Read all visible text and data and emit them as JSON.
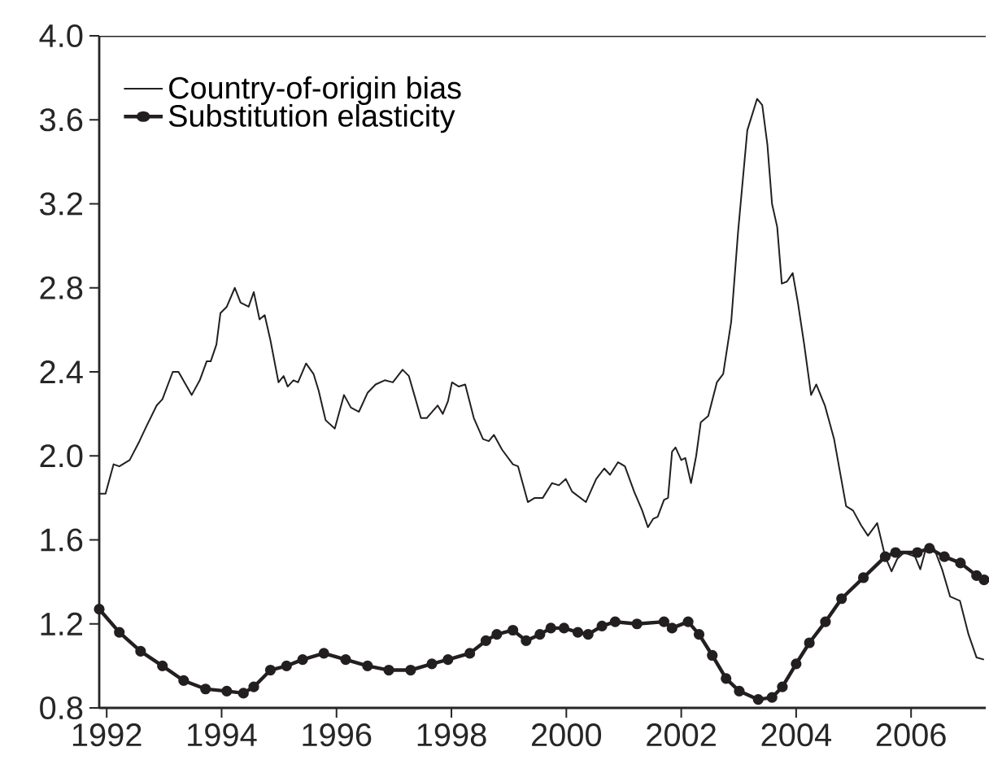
{
  "chart_data": {
    "type": "line",
    "xlim": [
      1991.87,
      2007.3
    ],
    "ylim": [
      0.8,
      4.0
    ],
    "xticks": [
      1992,
      1994,
      1996,
      1998,
      2000,
      2002,
      2004,
      2006
    ],
    "yticks": [
      0.8,
      1.2,
      1.6,
      {
        "value": 2.0,
        "label": "2.0"
      },
      2.4,
      2.8,
      3.2,
      3.6,
      {
        "value": 4.0,
        "label": "4.0"
      }
    ],
    "legend": "top left",
    "series": [
      {
        "name": "Country-of-origin bias",
        "color": "#231f20",
        "marker": "none",
        "x": [
          1991.87,
          1991.98,
          1992.12,
          1992.22,
          1992.4,
          1992.57,
          1992.69,
          1992.87,
          1992.97,
          1993.15,
          1993.25,
          1993.48,
          1993.62,
          1993.74,
          1993.81,
          1993.91,
          1993.98,
          1994.09,
          1994.23,
          1994.33,
          1994.47,
          1994.56,
          1994.66,
          1994.75,
          1994.85,
          1994.99,
          1995.08,
          1995.15,
          1995.25,
          1995.33,
          1995.47,
          1995.6,
          1995.69,
          1995.81,
          1995.97,
          1996.13,
          1996.25,
          1996.39,
          1996.54,
          1996.68,
          1996.84,
          1996.98,
          1997.15,
          1997.26,
          1997.47,
          1997.57,
          1997.76,
          1997.85,
          1997.94,
          1998.01,
          1998.13,
          1998.24,
          1998.39,
          1998.55,
          1998.65,
          1998.74,
          1998.88,
          1999.07,
          1999.16,
          1999.33,
          1999.45,
          1999.59,
          1999.75,
          1999.87,
          1999.99,
          2000.1,
          2000.34,
          2000.52,
          2000.66,
          2000.76,
          2000.9,
          2001.02,
          2001.18,
          2001.32,
          2001.42,
          2001.51,
          2001.59,
          2001.7,
          2001.77,
          2001.84,
          2001.9,
          2002.0,
          2002.07,
          2002.17,
          2002.26,
          2002.34,
          2002.47,
          2002.62,
          2002.73,
          2002.87,
          2002.99,
          2003.15,
          2003.32,
          2003.41,
          2003.5,
          2003.58,
          2003.67,
          2003.75,
          2003.84,
          2003.94,
          2004.03,
          2004.14,
          2004.26,
          2004.35,
          2004.5,
          2004.66,
          2004.87,
          2004.99,
          2005.13,
          2005.25,
          2005.41,
          2005.55,
          2005.66,
          2005.76,
          2005.88,
          2006.07,
          2006.16,
          2006.25,
          2006.4,
          2006.54,
          2006.68,
          2006.85,
          2007.0,
          2007.14,
          2007.27
        ],
        "values": [
          1.82,
          1.82,
          1.96,
          1.95,
          1.98,
          2.07,
          2.14,
          2.24,
          2.27,
          2.4,
          2.4,
          2.29,
          2.36,
          2.45,
          2.45,
          2.53,
          2.68,
          2.71,
          2.8,
          2.73,
          2.71,
          2.78,
          2.65,
          2.67,
          2.55,
          2.35,
          2.38,
          2.33,
          2.36,
          2.35,
          2.44,
          2.39,
          2.31,
          2.17,
          2.13,
          2.29,
          2.23,
          2.21,
          2.3,
          2.34,
          2.36,
          2.35,
          2.41,
          2.38,
          2.18,
          2.18,
          2.24,
          2.2,
          2.26,
          2.35,
          2.33,
          2.34,
          2.18,
          2.08,
          2.07,
          2.1,
          2.03,
          1.96,
          1.95,
          1.78,
          1.8,
          1.8,
          1.87,
          1.86,
          1.89,
          1.83,
          1.78,
          1.89,
          1.94,
          1.91,
          1.97,
          1.95,
          1.83,
          1.74,
          1.66,
          1.7,
          1.71,
          1.79,
          1.8,
          2.02,
          2.04,
          1.98,
          1.99,
          1.87,
          2.0,
          2.16,
          2.19,
          2.35,
          2.39,
          2.64,
          3.07,
          3.55,
          3.7,
          3.67,
          3.48,
          3.2,
          3.09,
          2.82,
          2.83,
          2.87,
          2.73,
          2.53,
          2.29,
          2.34,
          2.24,
          2.08,
          1.76,
          1.74,
          1.67,
          1.62,
          1.68,
          1.52,
          1.45,
          1.51,
          1.54,
          1.52,
          1.46,
          1.55,
          1.56,
          1.46,
          1.33,
          1.31,
          1.15,
          1.04,
          1.03
        ]
      },
      {
        "name": "Substitution elasticity",
        "color": "#231f20",
        "marker": "circle",
        "x": [
          1991.87,
          1992.22,
          1992.59,
          1992.97,
          1993.34,
          1993.72,
          1994.09,
          1994.38,
          1994.56,
          1994.85,
          1995.13,
          1995.41,
          1995.78,
          1996.16,
          1996.54,
          1996.91,
          1997.29,
          1997.66,
          1997.94,
          1998.32,
          1998.6,
          1998.79,
          1999.07,
          1999.3,
          1999.54,
          1999.73,
          1999.96,
          2000.2,
          2000.38,
          2000.62,
          2000.85,
          2001.23,
          2001.7,
          2001.84,
          2002.12,
          2002.31,
          2002.54,
          2002.78,
          2003.01,
          2003.34,
          2003.58,
          2003.76,
          2004.0,
          2004.23,
          2004.51,
          2004.79,
          2005.17,
          2005.55,
          2005.73,
          2006.11,
          2006.32,
          2006.58,
          2006.86,
          2007.14,
          2007.27
        ],
        "values": [
          1.27,
          1.16,
          1.07,
          1.0,
          0.93,
          0.89,
          0.88,
          0.87,
          0.9,
          0.98,
          1.0,
          1.03,
          1.06,
          1.03,
          1.0,
          0.98,
          0.98,
          1.01,
          1.03,
          1.06,
          1.12,
          1.15,
          1.17,
          1.12,
          1.15,
          1.18,
          1.18,
          1.16,
          1.15,
          1.19,
          1.21,
          1.2,
          1.21,
          1.18,
          1.21,
          1.15,
          1.05,
          0.94,
          0.88,
          0.84,
          0.85,
          0.9,
          1.01,
          1.11,
          1.21,
          1.32,
          1.42,
          1.52,
          1.54,
          1.54,
          1.56,
          1.52,
          1.49,
          1.43,
          1.41
        ]
      }
    ]
  }
}
